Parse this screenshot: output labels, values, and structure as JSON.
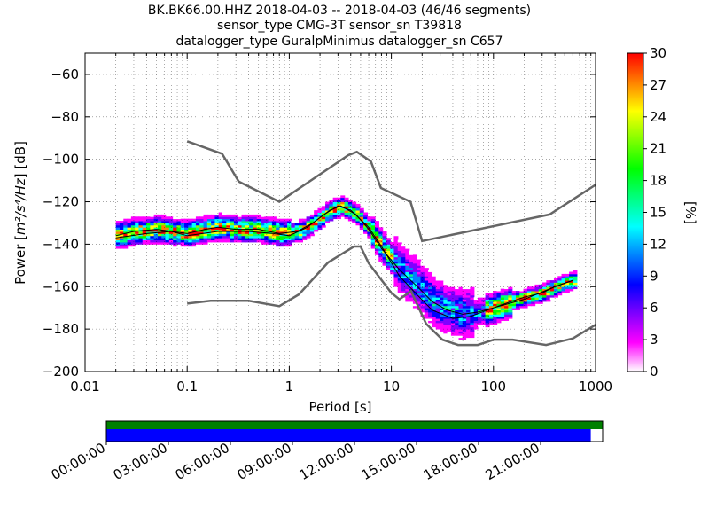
{
  "chart_data": {
    "type": "heatmap",
    "title_lines": [
      "BK.BK66.00.HHZ   2018-04-03 -- 2018-04-03  (46/46 segments)",
      "sensor_type CMG-3T sensor_sn T39818",
      "datalogger_type GuralpMinimus datalogger_sn C657"
    ],
    "xlabel": "Period [s]",
    "ylabel_prefix": "Power [",
    "ylabel_units": "m²/s⁴/Hz",
    "ylabel_suffix": "] [dB]",
    "x_scale": "log",
    "xlim": [
      0.01,
      1000
    ],
    "ylim": [
      -200,
      -50
    ],
    "x_ticks": [
      {
        "value": 0.01,
        "label": "0.01"
      },
      {
        "value": 0.1,
        "label": "0.1"
      },
      {
        "value": 1,
        "label": "1"
      },
      {
        "value": 10,
        "label": "10"
      },
      {
        "value": 100,
        "label": "100"
      },
      {
        "value": 1000,
        "label": "1000"
      }
    ],
    "y_ticks": [
      {
        "value": -60,
        "label": "−60"
      },
      {
        "value": -80,
        "label": "−80"
      },
      {
        "value": -100,
        "label": "−100"
      },
      {
        "value": -120,
        "label": "−120"
      },
      {
        "value": -140,
        "label": "−140"
      },
      {
        "value": -160,
        "label": "−160"
      },
      {
        "value": -180,
        "label": "−180"
      },
      {
        "value": -200,
        "label": "−200"
      }
    ],
    "grid": true,
    "colorbar": {
      "label": "[%]",
      "range": [
        0,
        30
      ],
      "ticks": [
        {
          "value": 0,
          "label": "0"
        },
        {
          "value": 3,
          "label": "3"
        },
        {
          "value": 6,
          "label": "6"
        },
        {
          "value": 9,
          "label": "9"
        },
        {
          "value": 12,
          "label": "12"
        },
        {
          "value": 15,
          "label": "15"
        },
        {
          "value": 18,
          "label": "18"
        },
        {
          "value": 21,
          "label": "21"
        },
        {
          "value": 24,
          "label": "24"
        },
        {
          "value": 27,
          "label": "27"
        },
        {
          "value": 30,
          "label": "30"
        }
      ],
      "colors": [
        "#ffffff",
        "#ff00ff",
        "#8000ff",
        "#0000ff",
        "#0080ff",
        "#00ffff",
        "#00ff80",
        "#00ff00",
        "#80ff00",
        "#ffff00",
        "#ff8000",
        "#ff0000"
      ]
    },
    "noise_model_high": [
      [
        0.1,
        -91.5
      ],
      [
        0.22,
        -97.4
      ],
      [
        0.32,
        -110.5
      ],
      [
        0.8,
        -120
      ],
      [
        3.8,
        -98
      ],
      [
        4.6,
        -96.5
      ],
      [
        6.3,
        -101
      ],
      [
        7.9,
        -113.5
      ],
      [
        15.4,
        -120
      ],
      [
        20,
        -138.5
      ],
      [
        354.8,
        -126
      ],
      [
        1000,
        -112
      ]
    ],
    "noise_model_low": [
      [
        0.1,
        -168
      ],
      [
        0.17,
        -166.7
      ],
      [
        0.4,
        -166.7
      ],
      [
        0.8,
        -169.2
      ],
      [
        1.24,
        -163.7
      ],
      [
        2.4,
        -148.6
      ],
      [
        4.3,
        -141.1
      ],
      [
        5,
        -141.1
      ],
      [
        6,
        -149
      ],
      [
        10,
        -163
      ],
      [
        12,
        -166
      ],
      [
        15.6,
        -162.1
      ],
      [
        21.9,
        -177.5
      ],
      [
        31.6,
        -185
      ],
      [
        45,
        -187.5
      ],
      [
        70,
        -187.5
      ],
      [
        101,
        -185
      ],
      [
        154,
        -185
      ],
      [
        328,
        -187.5
      ],
      [
        600,
        -184.4
      ],
      [
        1000,
        -178
      ]
    ],
    "mean_curve": [
      [
        0.02,
        -136
      ],
      [
        0.03,
        -134
      ],
      [
        0.05,
        -133
      ],
      [
        0.1,
        -135
      ],
      [
        0.15,
        -133
      ],
      [
        0.2,
        -132
      ],
      [
        0.3,
        -133
      ],
      [
        0.5,
        -133
      ],
      [
        0.8,
        -135
      ],
      [
        1.2,
        -134
      ],
      [
        1.7,
        -130
      ],
      [
        2.5,
        -124
      ],
      [
        3.2,
        -122
      ],
      [
        4.5,
        -126
      ],
      [
        6,
        -133
      ],
      [
        8,
        -142
      ],
      [
        12,
        -152
      ],
      [
        18,
        -160
      ],
      [
        25,
        -167
      ],
      [
        35,
        -171
      ],
      [
        50,
        -173
      ],
      [
        70,
        -172
      ],
      [
        100,
        -170
      ],
      [
        150,
        -167
      ],
      [
        200,
        -165
      ],
      [
        300,
        -163
      ],
      [
        400,
        -160
      ],
      [
        600,
        -157
      ]
    ],
    "mode_curve": [
      [
        0.02,
        -137
      ],
      [
        0.04,
        -135
      ],
      [
        0.07,
        -134
      ],
      [
        0.1,
        -136
      ],
      [
        0.2,
        -134
      ],
      [
        0.4,
        -134
      ],
      [
        0.7,
        -135
      ],
      [
        1,
        -136
      ],
      [
        1.5,
        -132
      ],
      [
        2.2,
        -126
      ],
      [
        3,
        -122
      ],
      [
        4,
        -124
      ],
      [
        6,
        -132
      ],
      [
        8,
        -141
      ],
      [
        12,
        -155
      ],
      [
        18,
        -164
      ],
      [
        25,
        -171
      ],
      [
        40,
        -175
      ],
      [
        60,
        -174
      ],
      [
        100,
        -170
      ],
      [
        200,
        -166
      ],
      [
        400,
        -160
      ],
      [
        600,
        -157
      ]
    ],
    "time_axis": {
      "labels": [
        "00:00:00",
        "03:00:00",
        "06:00:00",
        "09:00:00",
        "12:00:00",
        "15:00:00",
        "18:00:00",
        "21:00:00"
      ],
      "hours": [
        0,
        3,
        6,
        9,
        12,
        15,
        18,
        21
      ],
      "range_hours": [
        0,
        24
      ],
      "top_band_color": "#008000",
      "bottom_band_color": "#0000ff",
      "bottom_band_coverage": 0.976
    }
  }
}
